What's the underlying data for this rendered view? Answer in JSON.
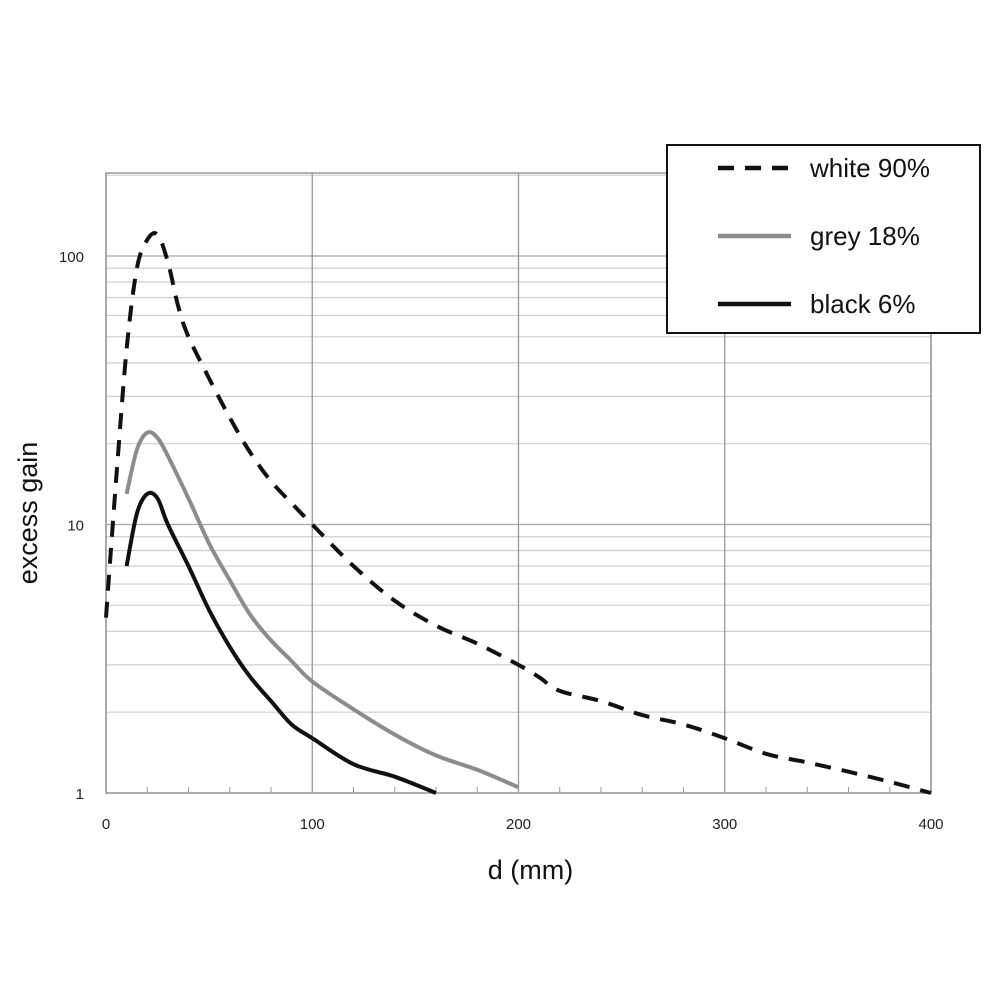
{
  "chart_data": {
    "type": "line",
    "title": "",
    "xlabel": "d (mm)",
    "ylabel": "excess gain",
    "xlim": [
      0,
      400
    ],
    "ylim": [
      1,
      200
    ],
    "yscale": "log",
    "grid": true,
    "legend_position": "top-right",
    "x_ticks": [
      {
        "value": 0,
        "label": "0"
      },
      {
        "value": 100,
        "label": "100"
      },
      {
        "value": 200,
        "label": "200"
      },
      {
        "value": 300,
        "label": "300"
      },
      {
        "value": 400,
        "label": "400"
      }
    ],
    "y_ticks": [
      {
        "value": 1,
        "label": "1"
      },
      {
        "value": 10,
        "label": "10"
      },
      {
        "value": 100,
        "label": "100"
      }
    ],
    "series": [
      {
        "name": "white 90%",
        "color": "#111111",
        "style": "dashed",
        "points": [
          [
            0,
            4.5
          ],
          [
            5,
            15
          ],
          [
            10,
            45
          ],
          [
            15,
            90
          ],
          [
            20,
            115
          ],
          [
            25,
            120
          ],
          [
            30,
            95
          ],
          [
            35,
            65
          ],
          [
            40,
            50
          ],
          [
            50,
            35
          ],
          [
            60,
            25
          ],
          [
            70,
            18.5
          ],
          [
            80,
            14.5
          ],
          [
            90,
            12
          ],
          [
            100,
            10
          ],
          [
            120,
            7
          ],
          [
            140,
            5.2
          ],
          [
            160,
            4.2
          ],
          [
            180,
            3.6
          ],
          [
            200,
            3.0
          ],
          [
            210,
            2.7
          ],
          [
            220,
            2.4
          ],
          [
            240,
            2.2
          ],
          [
            260,
            1.95
          ],
          [
            280,
            1.8
          ],
          [
            300,
            1.6
          ],
          [
            320,
            1.4
          ],
          [
            340,
            1.3
          ],
          [
            360,
            1.2
          ],
          [
            380,
            1.1
          ],
          [
            400,
            1.0
          ]
        ]
      },
      {
        "name": "grey 18%",
        "color": "#8c8c8c",
        "style": "solid",
        "points": [
          [
            10,
            13
          ],
          [
            15,
            19
          ],
          [
            20,
            22
          ],
          [
            25,
            21
          ],
          [
            30,
            18
          ],
          [
            40,
            12.5
          ],
          [
            50,
            8.5
          ],
          [
            60,
            6.2
          ],
          [
            70,
            4.6
          ],
          [
            80,
            3.7
          ],
          [
            90,
            3.1
          ],
          [
            100,
            2.6
          ],
          [
            120,
            2.05
          ],
          [
            140,
            1.65
          ],
          [
            160,
            1.38
          ],
          [
            180,
            1.22
          ],
          [
            200,
            1.05
          ]
        ]
      },
      {
        "name": "black 6%",
        "color": "#111111",
        "style": "solid",
        "points": [
          [
            10,
            7
          ],
          [
            15,
            11
          ],
          [
            20,
            13
          ],
          [
            25,
            12.5
          ],
          [
            30,
            10
          ],
          [
            40,
            7
          ],
          [
            50,
            4.8
          ],
          [
            60,
            3.5
          ],
          [
            70,
            2.7
          ],
          [
            80,
            2.2
          ],
          [
            90,
            1.8
          ],
          [
            100,
            1.6
          ],
          [
            120,
            1.28
          ],
          [
            140,
            1.15
          ],
          [
            160,
            1.0
          ]
        ]
      }
    ]
  }
}
